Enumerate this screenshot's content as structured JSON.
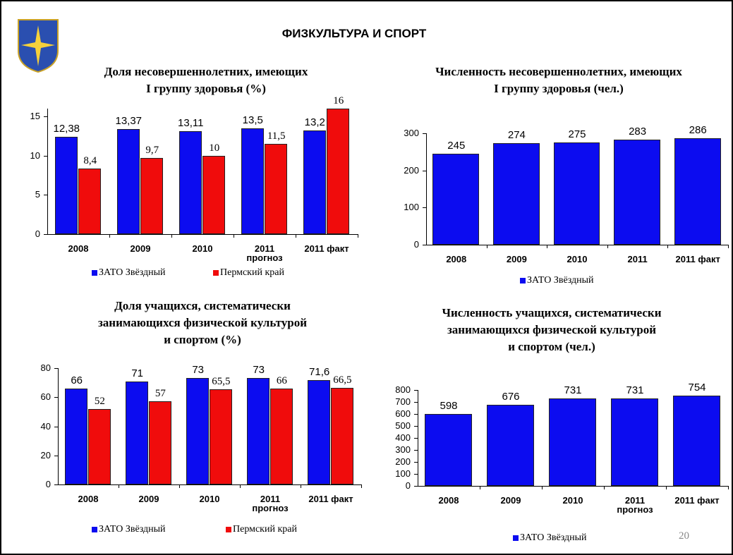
{
  "title": "ФИЗКУЛЬТУРА И СПОРТ",
  "page_number": "20",
  "chart_data": [
    {
      "type": "bar",
      "title": "Доля несовершеннолетних, имеющих\nI группу здоровья (%)",
      "categories": [
        "2008",
        "2009",
        "2010",
        "2011\nпрогноз",
        "2011 факт"
      ],
      "series": [
        {
          "name": "ЗАТО Звёздный",
          "color": "#0c0cf0",
          "values": [
            12.38,
            13.37,
            13.11,
            13.5,
            13.2
          ],
          "value_labels": [
            "12,38",
            "13,37",
            "13,11",
            "13,5",
            "13,2"
          ]
        },
        {
          "name": "Пермский край",
          "color": "#f00c0c",
          "values": [
            8.4,
            9.7,
            10,
            11.5,
            16
          ],
          "value_labels": [
            "8,4",
            "9,7",
            "10",
            "11,5",
            "16"
          ]
        }
      ],
      "ylim": [
        0,
        16
      ],
      "yticks": [
        0,
        5,
        10,
        15
      ]
    },
    {
      "type": "bar",
      "title": "Численность несовершеннолетних, имеющих\nI группу здоровья (чел.)",
      "categories": [
        "2008",
        "2009",
        "2010",
        "2011",
        "2011 факт"
      ],
      "series": [
        {
          "name": "ЗАТО Звёздный",
          "color": "#0c0cf0",
          "values": [
            245,
            274,
            275,
            283,
            286
          ]
        }
      ],
      "ylim": [
        0,
        300
      ],
      "yticks": [
        0,
        100,
        200,
        300
      ]
    },
    {
      "type": "bar",
      "title": "Доля учащихся, систематически\nзанимающихся физической культурой\nи спортом (%)",
      "categories": [
        "2008",
        "2009",
        "2010",
        "2011\nпрогноз",
        "2011 факт"
      ],
      "series": [
        {
          "name": "ЗАТО Звёздный",
          "color": "#0c0cf0",
          "values": [
            66,
            71,
            73,
            73,
            71.6
          ],
          "value_labels": [
            "66",
            "71",
            "73",
            "73",
            "71,6"
          ]
        },
        {
          "name": "Пермский край",
          "color": "#f00c0c",
          "values": [
            52,
            57,
            65.5,
            66,
            66.5
          ],
          "value_labels": [
            "52",
            "57",
            "65,5",
            "66",
            "66,5"
          ]
        }
      ],
      "ylim": [
        0,
        80
      ],
      "yticks": [
        0,
        20,
        40,
        60,
        80
      ]
    },
    {
      "type": "bar",
      "title": "Численность учащихся, систематически\nзанимающихся физической культурой\nи спортом (чел.)",
      "categories": [
        "2008",
        "2009",
        "2010",
        "2011\nпрогноз",
        "2011 факт"
      ],
      "series": [
        {
          "name": "ЗАТО Звёздный",
          "color": "#0c0cf0",
          "values": [
            598,
            676,
            731,
            731,
            754
          ]
        }
      ],
      "ylim": [
        0,
        800
      ],
      "yticks": [
        0,
        100,
        200,
        300,
        400,
        500,
        600,
        700,
        800
      ]
    }
  ]
}
